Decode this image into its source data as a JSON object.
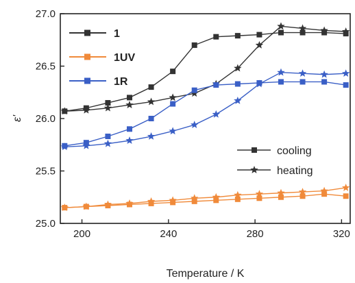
{
  "chart_data": {
    "type": "line",
    "xlabel": "Temperature / K",
    "ylabel": "ε'",
    "xlim": [
      190,
      324
    ],
    "ylim": [
      25.0,
      27.0
    ],
    "xticks": [
      "200",
      "240",
      "280",
      "320"
    ],
    "xtick_values": [
      200,
      240,
      280,
      320
    ],
    "yticks": [
      "25.0",
      "25.5",
      "26.0",
      "26.5",
      "27.0"
    ],
    "ytick_values": [
      25.0,
      25.5,
      26.0,
      26.5,
      27.0
    ],
    "legend_series": [
      {
        "name": "1",
        "color": "#333333"
      },
      {
        "name": "1UV",
        "color": "#f08a3a"
      },
      {
        "name": "1R",
        "color": "#3a5fc6"
      }
    ],
    "legend_modes": [
      {
        "name": "cooling",
        "marker": "square"
      },
      {
        "name": "heating",
        "marker": "star"
      }
    ],
    "series": [
      {
        "sample": "1",
        "mode": "cooling",
        "marker": "square",
        "color": "#333333",
        "x": [
          192,
          202,
          212,
          222,
          232,
          242,
          252,
          262,
          272,
          282,
          292,
          302,
          312,
          322
        ],
        "y": [
          26.07,
          26.1,
          26.15,
          26.2,
          26.3,
          26.45,
          26.7,
          26.78,
          26.79,
          26.8,
          26.82,
          26.82,
          26.82,
          26.81
        ]
      },
      {
        "sample": "1",
        "mode": "heating",
        "marker": "star",
        "color": "#333333",
        "x": [
          192,
          202,
          212,
          222,
          232,
          242,
          252,
          262,
          272,
          282,
          292,
          302,
          312,
          322
        ],
        "y": [
          26.07,
          26.08,
          26.1,
          26.13,
          26.16,
          26.2,
          26.24,
          26.33,
          26.48,
          26.7,
          26.88,
          26.86,
          26.84,
          26.83
        ]
      },
      {
        "sample": "1UV",
        "mode": "cooling",
        "marker": "square",
        "color": "#f08a3a",
        "x": [
          192,
          202,
          212,
          222,
          232,
          242,
          252,
          262,
          272,
          282,
          292,
          302,
          312,
          322
        ],
        "y": [
          25.15,
          25.16,
          25.17,
          25.18,
          25.19,
          25.2,
          25.21,
          25.22,
          25.23,
          25.24,
          25.25,
          25.26,
          25.28,
          25.26
        ]
      },
      {
        "sample": "1UV",
        "mode": "heating",
        "marker": "star",
        "color": "#f08a3a",
        "x": [
          192,
          202,
          212,
          222,
          232,
          242,
          252,
          262,
          272,
          282,
          292,
          302,
          312,
          322
        ],
        "y": [
          25.15,
          25.16,
          25.18,
          25.19,
          25.21,
          25.22,
          25.24,
          25.25,
          25.27,
          25.28,
          25.29,
          25.3,
          25.31,
          25.34
        ]
      },
      {
        "sample": "1R",
        "mode": "cooling",
        "marker": "square",
        "color": "#3a5fc6",
        "x": [
          192,
          202,
          212,
          222,
          232,
          242,
          252,
          262,
          272,
          282,
          292,
          302,
          312,
          322
        ],
        "y": [
          25.74,
          25.77,
          25.83,
          25.9,
          26.0,
          26.14,
          26.27,
          26.32,
          26.33,
          26.34,
          26.35,
          26.35,
          26.35,
          26.32
        ]
      },
      {
        "sample": "1R",
        "mode": "heating",
        "marker": "star",
        "color": "#3a5fc6",
        "x": [
          192,
          202,
          212,
          222,
          232,
          242,
          252,
          262,
          272,
          282,
          292,
          302,
          312,
          322
        ],
        "y": [
          25.73,
          25.74,
          25.76,
          25.79,
          25.83,
          25.88,
          25.94,
          26.04,
          26.17,
          26.33,
          26.44,
          26.43,
          26.42,
          26.43
        ]
      }
    ]
  }
}
